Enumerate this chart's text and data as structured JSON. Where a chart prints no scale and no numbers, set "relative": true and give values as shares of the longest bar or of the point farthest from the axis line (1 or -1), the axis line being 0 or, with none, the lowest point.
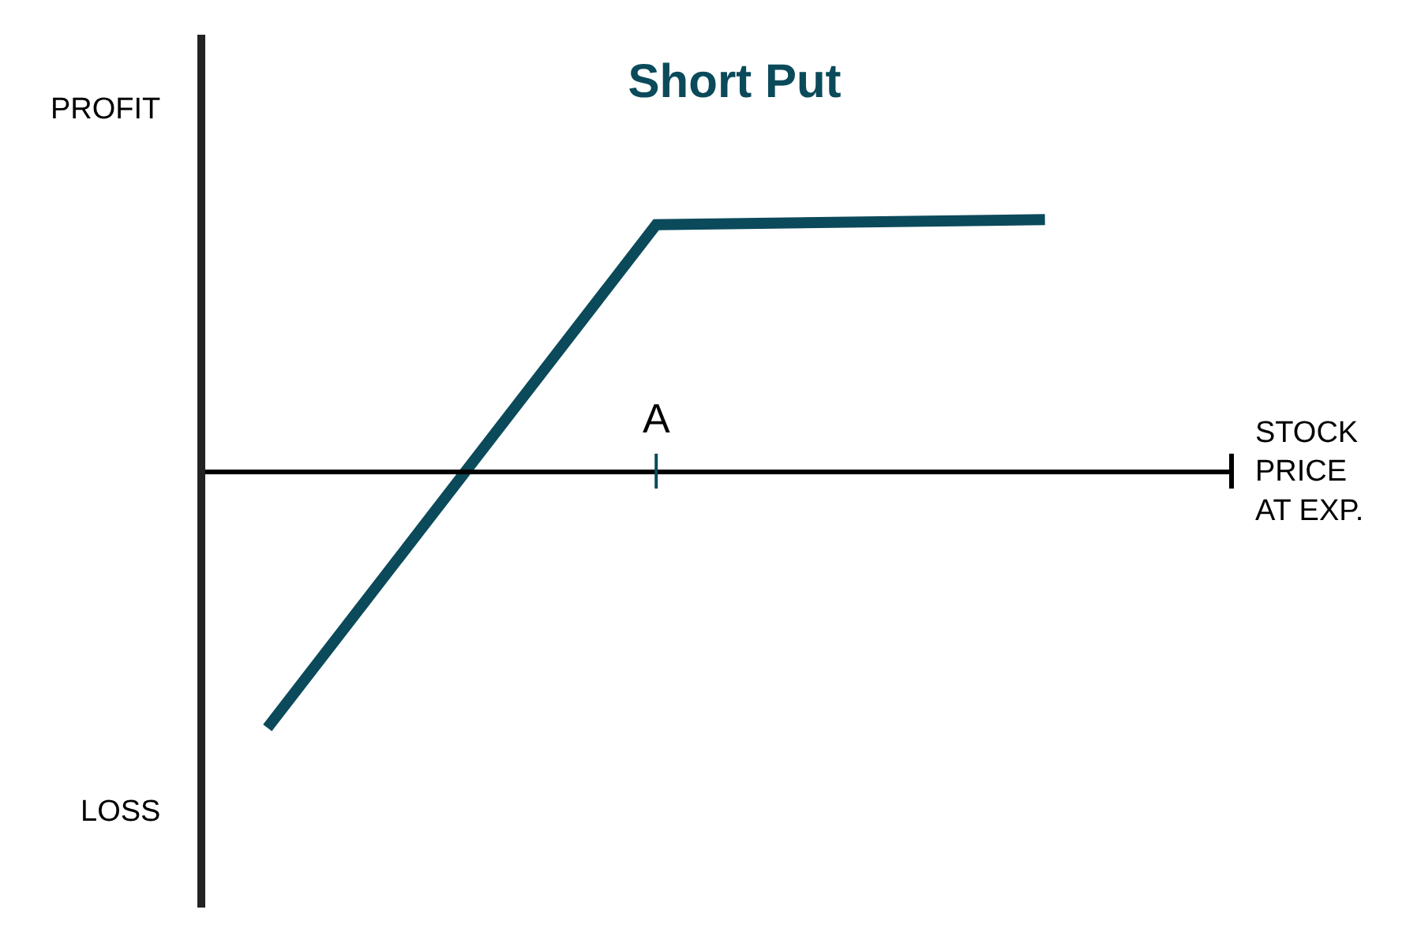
{
  "chart_data": {
    "type": "line",
    "title": "Short Put",
    "xlabel": "STOCK PRICE AT EXP.",
    "relative": true,
    "annotations": [
      "PROFIT",
      "LOSS",
      "A"
    ],
    "categories": [
      null,
      null,
      null
    ],
    "series": [
      {
        "color": "#0b4a5a",
        "values": [
          -1,
          0.96,
          0.98
        ]
      }
    ],
    "legend": false,
    "marker": "none",
    "line_style": "solid"
  }
}
